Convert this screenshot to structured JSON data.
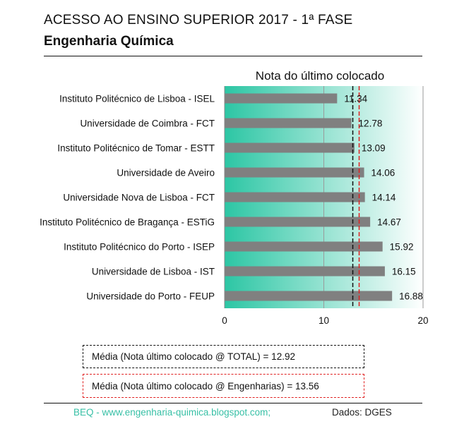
{
  "header": {
    "title": "ACESSO AO ENSINO SUPERIOR 2017  - 1ª FASE",
    "subtitle": "Engenharia Química"
  },
  "chart_data": {
    "type": "bar",
    "orientation": "horizontal",
    "title": "Nota do último colocado",
    "categories": [
      "Instituto Politécnico de Lisboa - ISEL",
      "Universidade de Coimbra - FCT",
      "Instituto Politécnico de Tomar - ESTT",
      "Universidade de Aveiro",
      "Universidade Nova de Lisboa - FCT",
      "Instituto Politécnico de Bragança - ESTiG",
      "Instituto Politécnico do Porto - ISEP",
      "Universidade de Lisboa - IST",
      "Universidade do Porto - FEUP"
    ],
    "values": [
      11.34,
      12.78,
      13.09,
      14.06,
      14.14,
      14.67,
      15.92,
      16.15,
      16.88
    ],
    "value_labels": [
      "11.34",
      "12.78",
      "13.09",
      "14.06",
      "14.14",
      "14.67",
      "15.92",
      "16.15",
      "16.88"
    ],
    "xlim": [
      0,
      20
    ],
    "xticks": [
      "0",
      "10",
      "20"
    ],
    "reference_lines": [
      {
        "value": 12.92,
        "color": "#111111",
        "style": "dashed"
      },
      {
        "value": 13.56,
        "color": "#e02020",
        "style": "dashed"
      }
    ],
    "grid": true,
    "bar_color": "#808080",
    "background_gradient": [
      "#2cc6a4",
      "#ffffff"
    ]
  },
  "legend": {
    "total_label": "Média (Nota último colocado @ TOTAL) =  12.92",
    "eng_label": "Média (Nota último colocado @ Engenharias) = 13.56"
  },
  "footer": {
    "source_link": "BEQ - www.engenharia-quimica.blogspot.com;",
    "data_source": "Dados: DGES"
  }
}
